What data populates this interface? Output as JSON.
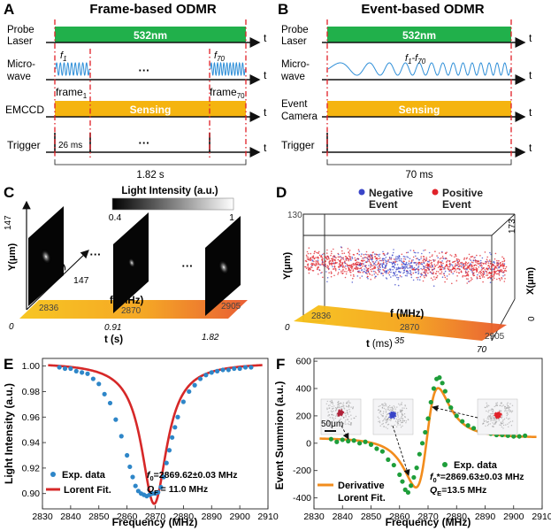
{
  "panelA": {
    "letter": "A",
    "title": "Frame-based ODMR",
    "row_probe": [
      "Probe",
      "Laser"
    ],
    "laser_label": "532nm",
    "row_mw": [
      "Micro-",
      "wave"
    ],
    "f_first": "f",
    "f_first_sub": "1",
    "f_last": "f",
    "f_last_sub": "70",
    "dots": "···",
    "frame_first": "frame",
    "frame_first_sub": "1",
    "frame_last": "frame",
    "frame_last_sub": "70",
    "row_detector": "EMCCD",
    "sensing_label": "Sensing",
    "row_trigger": "Trigger",
    "trigger_interval": "26 ms",
    "duration": "1.82 s",
    "t": "t"
  },
  "panelB": {
    "letter": "B",
    "title": "Event-based ODMR",
    "row_probe": [
      "Probe",
      "Laser"
    ],
    "laser_label": "532nm",
    "row_mw": [
      "Micro-",
      "wave"
    ],
    "sweep_label": "f",
    "sweep_sub1": "1",
    "sweep_dash": "-f",
    "sweep_sub2": "70",
    "row_detector": [
      "Event",
      "Camera"
    ],
    "sensing_label": "Sensing",
    "row_trigger": "Trigger",
    "duration": "70 ms",
    "t": "t"
  },
  "panelC": {
    "letter": "C",
    "colorbar_title": "Light Intensity (a.u.)",
    "colorbar_min": "0.4",
    "colorbar_max": "1",
    "y_label": "Y(μm)",
    "y_max": "147",
    "x_label": "X(μm)",
    "x_max": "147",
    "f_label": "f (MHz)",
    "f_ticks": [
      "2836",
      "2870",
      "2905"
    ],
    "t_label": "t (s)",
    "t_ticks": [
      "0",
      "0.91",
      "1.82"
    ],
    "dots": "···"
  },
  "panelD": {
    "letter": "D",
    "legend": [
      {
        "name": "Negative",
        "name2": "Event",
        "color": "#3a45c8"
      },
      {
        "name": "Positive",
        "name2": "Event",
        "color": "#e0222a"
      }
    ],
    "y_label": "Y(μm)",
    "y_max": "130",
    "x_label": "X(μm)",
    "x_ticks": [
      "0",
      "173"
    ],
    "f_label": "f (MHz)",
    "f_ticks": [
      "2836",
      "2870",
      "2905"
    ],
    "t_label": "t",
    "t_unit": "(ms)",
    "t_ticks": [
      "0",
      "35",
      "70"
    ]
  },
  "panelE": {
    "letter": "E",
    "legend_data": "Exp. data",
    "legend_fit": "Lorent Fit.",
    "annot_f0_prefix": "f",
    "annot_f0_sub": "0",
    "annot_f0": "=2869.62±0.03 MHz",
    "annot_q_prefix": "Q",
    "annot_q_sub": "F",
    "annot_q": " = 11.0 MHz"
  },
  "panelF": {
    "letter": "F",
    "scalebar": "50μm",
    "legend_data": "Exp. data",
    "legend_fit_1": "Derivative",
    "legend_fit_2": "Lorent Fit.",
    "annot_f0_prefix": "f",
    "annot_f0_sub": "0",
    "annot_f0": "*=2869.63±0.03 MHz",
    "annot_q_prefix": "Q",
    "annot_q_sub": "E",
    "annot_q": "=13.5 MHz"
  },
  "colors": {
    "laser": "#21b04b",
    "sensing": "#f5b40f",
    "microwave": "#2f8fd8",
    "data_E": "#2e86c8",
    "fit_E": "#d62828",
    "data_F": "#1e9e3a",
    "fit_F": "#f28c1c",
    "marker_red": "#e01e25"
  },
  "chart_data": [
    {
      "type": "scatter",
      "panel": "E",
      "xlabel": "Frequency (MHz)",
      "ylabel": "Light Intensity (a.u.)",
      "xlim": [
        2830,
        2910
      ],
      "ylim": [
        0.888,
        1.006
      ],
      "xticks": [
        2830,
        2840,
        2850,
        2860,
        2870,
        2880,
        2890,
        2900,
        2910
      ],
      "yticks": [
        0.9,
        0.92,
        0.94,
        0.96,
        0.98,
        1.0
      ],
      "series": [
        {
          "name": "Exp. data",
          "x": [
            2836,
            2838,
            2840,
            2842,
            2844,
            2846,
            2848,
            2850,
            2852,
            2854,
            2856,
            2858,
            2860,
            2861,
            2862,
            2863,
            2864,
            2865,
            2866,
            2867,
            2868,
            2869,
            2870,
            2871,
            2872,
            2873,
            2874,
            2875,
            2876,
            2877,
            2878,
            2880,
            2882,
            2884,
            2886,
            2888,
            2890,
            2892,
            2894,
            2896,
            2898,
            2900,
            2902,
            2904
          ],
          "y": [
            0.999,
            0.998,
            0.998,
            0.996,
            0.995,
            0.994,
            0.99,
            0.986,
            0.978,
            0.971,
            0.958,
            0.945,
            0.93,
            0.921,
            0.913,
            0.906,
            0.902,
            0.9,
            0.899,
            0.898,
            0.899,
            0.9,
            0.9,
            0.901,
            0.905,
            0.913,
            0.924,
            0.934,
            0.944,
            0.952,
            0.96,
            0.972,
            0.98,
            0.985,
            0.99,
            0.993,
            0.995,
            0.996,
            0.997,
            0.997,
            0.998,
            0.998,
            0.999,
            0.999
          ]
        },
        {
          "name": "Lorent Fit.",
          "model": "lorentzian",
          "x0": 2869.62,
          "fwhm": 11.0,
          "baseline": 1.003,
          "depth": 0.111
        }
      ]
    },
    {
      "type": "scatter",
      "panel": "F",
      "xlabel": "Frequency (MHz)",
      "ylabel": "Event Summion (a.u.)",
      "xlim": [
        2830,
        2910
      ],
      "ylim": [
        -480,
        620
      ],
      "xticks": [
        2830,
        2840,
        2850,
        2860,
        2870,
        2880,
        2890,
        2900,
        2910
      ],
      "yticks": [
        -400,
        -200,
        0,
        200,
        400,
        600
      ],
      "series": [
        {
          "name": "Exp. data",
          "x": [
            2836,
            2838,
            2840,
            2842,
            2844,
            2846,
            2848,
            2850,
            2852,
            2854,
            2856,
            2858,
            2860,
            2861,
            2862,
            2863,
            2864,
            2865,
            2866,
            2867,
            2868,
            2869,
            2870,
            2871,
            2872,
            2873,
            2874,
            2875,
            2876,
            2877,
            2878,
            2880,
            2882,
            2884,
            2886,
            2888,
            2890,
            2892,
            2894,
            2896,
            2898,
            2900,
            2902,
            2904
          ],
          "y": [
            30,
            10,
            25,
            15,
            20,
            0,
            10,
            -10,
            -40,
            -60,
            -120,
            -160,
            -230,
            -280,
            -340,
            -360,
            -310,
            -250,
            -180,
            -80,
            0,
            80,
            180,
            300,
            400,
            470,
            480,
            440,
            380,
            310,
            260,
            200,
            160,
            130,
            110,
            90,
            80,
            70,
            60,
            60,
            55,
            50,
            50,
            55
          ]
        },
        {
          "name": "Derivative Lorent Fit.",
          "model": "derivative-lorentzian",
          "x0": 2869.63,
          "fwhm": 13.5,
          "amplitude": 430,
          "offset": 40
        }
      ]
    }
  ]
}
